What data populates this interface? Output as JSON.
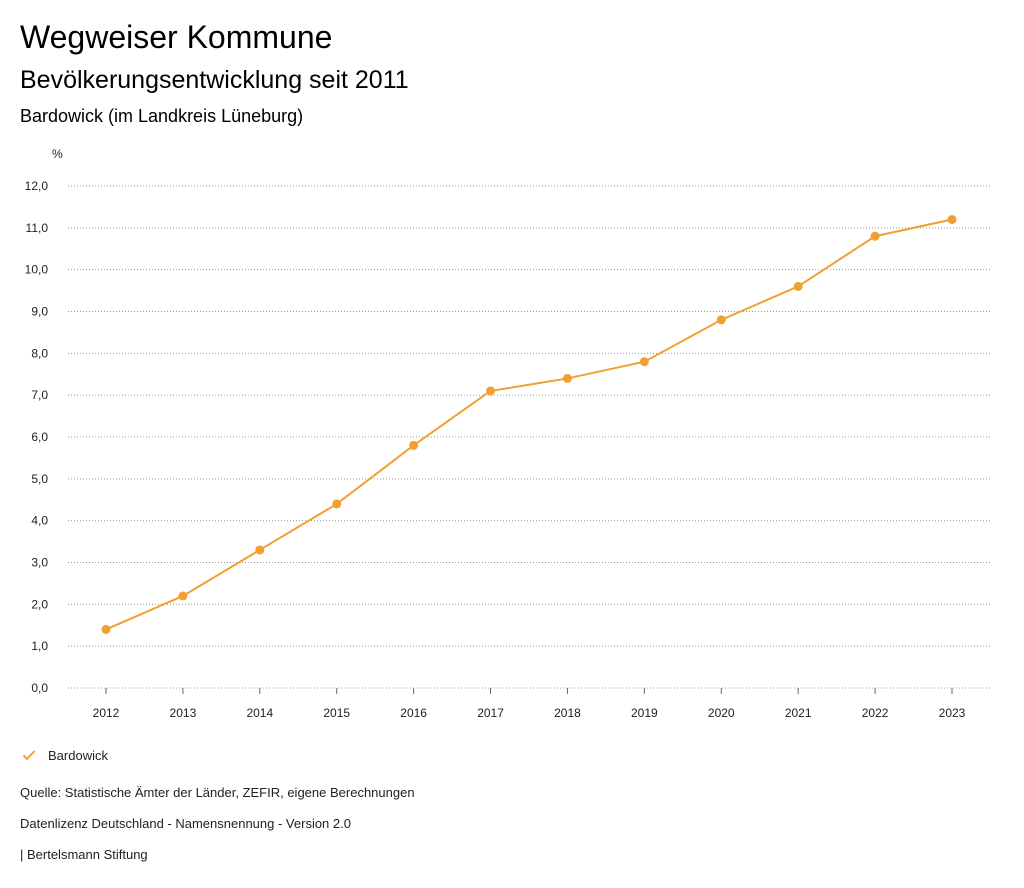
{
  "header": {
    "title": "Wegweiser Kommune",
    "subtitle": "Bevölkerungsentwicklung seit 2011",
    "region": "Bardowick (im Landkreis Lüneburg)"
  },
  "chart_data": {
    "type": "line",
    "title": "Bevölkerungsentwicklung seit 2011",
    "ylabel": "%",
    "xlabel": "",
    "x": [
      "2012",
      "2013",
      "2014",
      "2015",
      "2016",
      "2017",
      "2018",
      "2019",
      "2020",
      "2021",
      "2022",
      "2023"
    ],
    "series": [
      {
        "name": "Bardowick",
        "color": "#f0a030",
        "values": [
          1.4,
          2.2,
          3.3,
          4.4,
          5.8,
          7.1,
          7.4,
          7.8,
          8.8,
          9.6,
          10.8,
          11.2
        ]
      }
    ],
    "ylim": [
      0,
      12
    ],
    "yticks": [
      0,
      1,
      2,
      3,
      4,
      5,
      6,
      7,
      8,
      9,
      10,
      11,
      12
    ],
    "ytick_labels": [
      "0,0",
      "1,0",
      "2,0",
      "3,0",
      "4,0",
      "5,0",
      "6,0",
      "7,0",
      "8,0",
      "9,0",
      "10,0",
      "11,0",
      "12,0"
    ],
    "grid": true,
    "legend": "bottom-left"
  },
  "legend": {
    "label": "Bardowick",
    "icon": "check-icon"
  },
  "footer": {
    "source": "Quelle: Statistische Ämter der Länder, ZEFIR, eigene Berechnungen",
    "license": "Datenlizenz Deutschland - Namensnennung - Version 2.0",
    "publisher": "| Bertelsmann Stiftung"
  }
}
